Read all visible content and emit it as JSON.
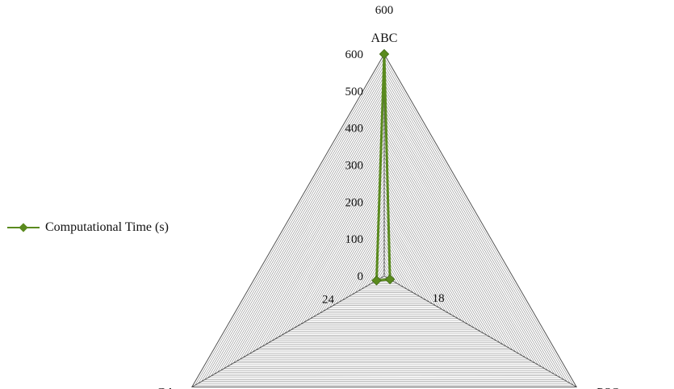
{
  "chart_data": {
    "type": "radar",
    "categories": [
      "ABC",
      "PSO",
      "GA"
    ],
    "series": [
      {
        "name": "Computational Time (s)",
        "values": [
          600,
          18,
          24
        ],
        "color": "#5a8a1e"
      }
    ],
    "rlim": [
      0,
      600
    ],
    "ticks": [
      "0",
      "100",
      "200",
      "300",
      "400",
      "500",
      "600"
    ],
    "data_labels": [
      "600",
      "18",
      "24"
    ],
    "legend_position": "left",
    "grid": true
  }
}
